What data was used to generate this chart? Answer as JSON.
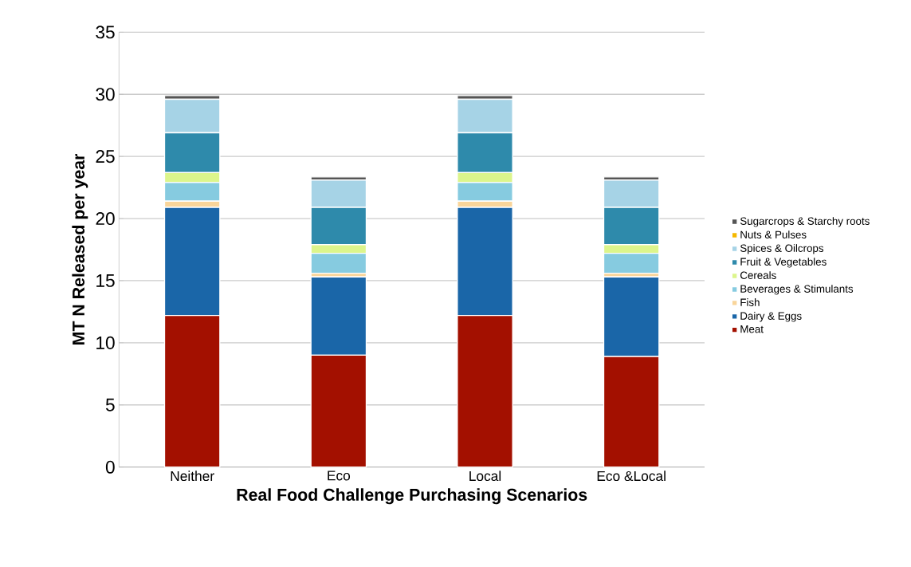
{
  "chart_data": {
    "type": "bar",
    "stacked": true,
    "xlabel": "Real Food Challenge Purchasing Scenarios",
    "ylabel": "MT N Released per year",
    "categories": [
      "Neither",
      "Eco",
      "Local",
      "Eco &Local"
    ],
    "series": [
      {
        "name": "Meat",
        "color": "#a31000",
        "values": [
          12.2,
          9.0,
          12.2,
          8.9
        ]
      },
      {
        "name": "Dairy & Eggs",
        "color": "#1a66a8",
        "values": [
          8.7,
          6.3,
          8.7,
          6.4
        ]
      },
      {
        "name": "Fish",
        "color": "#f9d59a",
        "values": [
          0.5,
          0.3,
          0.5,
          0.3
        ]
      },
      {
        "name": "Beverages & Stimulants",
        "color": "#86cbe0",
        "values": [
          1.5,
          1.6,
          1.5,
          1.6
        ]
      },
      {
        "name": "Cereals",
        "color": "#dcf58c",
        "values": [
          0.8,
          0.7,
          0.8,
          0.7
        ]
      },
      {
        "name": "Fruit & Vegetables",
        "color": "#2e8aab",
        "values": [
          3.2,
          3.0,
          3.2,
          3.0
        ]
      },
      {
        "name": "Spices & Oilcrops",
        "color": "#a6d3e6",
        "values": [
          2.7,
          2.2,
          2.7,
          2.2
        ]
      },
      {
        "name": "Nuts & Pulses",
        "color": "#f5b800",
        "values": [
          null,
          null,
          null,
          null
        ]
      },
      {
        "name": "Sugarcrops & Starchy roots",
        "color": "#555555",
        "values": [
          0.3,
          0.25,
          0.3,
          0.25
        ]
      }
    ],
    "ylim": [
      0,
      35
    ],
    "yticks": [
      0,
      5,
      10,
      15,
      20,
      25,
      30,
      35
    ],
    "grid": "y",
    "legend": "right"
  }
}
